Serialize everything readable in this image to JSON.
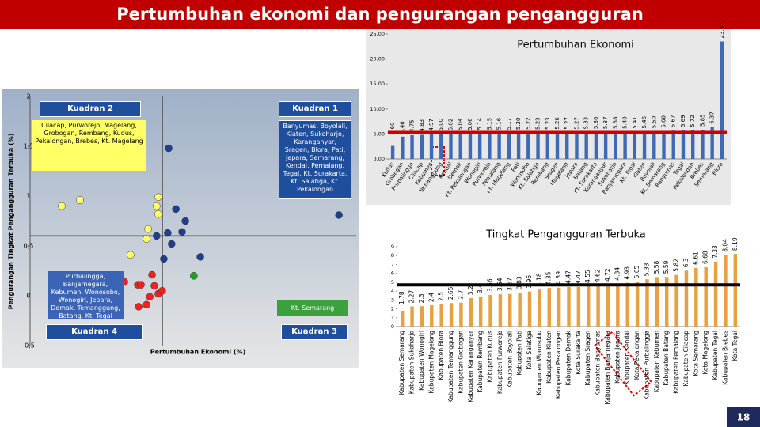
{
  "title": "Pertumbuhan ekonomi dan pengurangan pengangguran",
  "page_number": 18,
  "chart_data": [
    {
      "type": "scatter",
      "x_label": "Pertumbuhan Ekonomi (%)",
      "y_label": "Pengurangan Tingkat Pengangguran Terbuka (%)",
      "xlim": [
        0,
        10
      ],
      "ylim": [
        -0.5,
        2
      ],
      "yticks": [
        {
          "value": 2,
          "label": "2"
        },
        {
          "value": 1.5,
          "label": "1,5"
        },
        {
          "value": 1,
          "label": "1"
        },
        {
          "value": 0.5,
          "label": "0,5"
        },
        {
          "value": 0,
          "label": "0"
        },
        {
          "value": -0.5,
          "label": "-0,5"
        }
      ],
      "x_divider": 4.05,
      "y_divider": 0.6,
      "quadrants": [
        {
          "title": "Kuadran 1",
          "members": "Banyumas, Boyolali, Klaten, Sukoharjo, Karanganyar, Sragen, Blora, Pati, Jepara, Semarang, Kendal, Pemalang, Tegal, Kt. Surakarta, Kt. Salatiga, Kt. Pekalongan"
        },
        {
          "title": "Kuadran 2",
          "members": "Cilacap, Purworejo, Magelang, Grobogan, Rembang, Kudus, Pekalongan, Brebes, Kt. Magelang"
        },
        {
          "title": "Kuadran 3",
          "members": "Kt. Semarang"
        },
        {
          "title": "Kuadran 4",
          "members": "Purbalingga, Banjarnegara, Kebumen, Wonosobo, Wonogiri, Jepara, Demak, Temanggung, Batang, Kt. Tegal"
        }
      ],
      "series": [
        {
          "color": "#ffff66",
          "x": [
            0.97,
            1.53,
            3.93,
            3.88,
            3.93,
            3.62,
            3.57,
            3.08
          ],
          "values": [
            0.9,
            0.96,
            0.99,
            0.9,
            0.82,
            0.67,
            0.57,
            0.41
          ]
        },
        {
          "color": "#1f3f8c",
          "x": [
            4.25,
            4.47,
            4.76,
            3.88,
            4.22,
            4.66,
            4.34,
            4.1,
            5.22,
            9.47
          ],
          "values": [
            1.48,
            0.87,
            0.75,
            0.6,
            0.63,
            0.64,
            0.52,
            0.37,
            0.39,
            0.81
          ]
        },
        {
          "color": "#ee2222",
          "x": [
            2.89,
            3.3,
            3.4,
            3.74,
            3.81,
            3.67,
            3.93,
            3.57,
            4.05,
            3.33
          ],
          "values": [
            0.14,
            0.11,
            0.11,
            0.21,
            0.1,
            -0.01,
            0.02,
            -0.09,
            0.05,
            -0.11
          ]
        },
        {
          "color": "#22a022",
          "x": [
            5.02
          ],
          "values": [
            0.2
          ]
        }
      ]
    },
    {
      "type": "bar",
      "title": "Pertumbuhan Ekonomi",
      "color": "#3e6ab5",
      "reference_line": 5.3,
      "reference_color": "#d00000",
      "ylim": [
        0,
        25
      ],
      "yticks": [
        {
          "value": 0,
          "label": "0.00"
        },
        {
          "value": 5,
          "label": "5.00"
        },
        {
          "value": 10,
          "label": "10.00"
        },
        {
          "value": 15,
          "label": "15.00"
        },
        {
          "value": 20,
          "label": "20.00"
        },
        {
          "value": 25,
          "label": "25.00"
        }
      ],
      "categories": [
        "Kudus",
        "Grobogan",
        "Purbalingga",
        "Cilacap",
        "Kebumen",
        "Temanggung",
        "Kendal",
        "Demak",
        "Kt. Pekalongan",
        "Wonogiri",
        "Purworejo",
        "Pemalang",
        "Kt. Magelang",
        "Pati",
        "Wonosobo",
        "Kt. Salatiga",
        "Rembang",
        "Sragen",
        "Magelang",
        "Jepara",
        "Batang",
        "Kt. Surakarta",
        "Karanganyar",
        "Sukoharjo",
        "Banjarnegara",
        "Kt. Tegal",
        "Klaten",
        "Boyolali",
        "Kt. Semarang",
        "Banyumas",
        "Tegal",
        "Pekalongan",
        "Brebes",
        "Semarang",
        "Blora"
      ],
      "values": [
        2.6,
        4.46,
        4.75,
        4.83,
        4.97,
        5,
        5.02,
        5.04,
        5.06,
        5.14,
        5.15,
        5.16,
        5.17,
        5.2,
        5.22,
        5.23,
        5.23,
        5.26,
        5.27,
        5.27,
        5.33,
        5.36,
        5.37,
        5.38,
        5.4,
        5.41,
        5.46,
        5.5,
        5.6,
        5.67,
        5.69,
        5.72,
        5.85,
        6.37,
        23.5
      ],
      "value_labels": [
        "2.60",
        "4.46",
        "4.75",
        "4.83",
        "4.97",
        "5.00",
        "5.02",
        "5.04",
        "5.06",
        "5.14",
        "5.15",
        "5.16",
        "5.17",
        "5.20",
        "5.22",
        "5.23",
        "5.23",
        "5.26",
        "5.27",
        "5.27",
        "5.33",
        "5.36",
        "5.37",
        "5.38",
        "5.40",
        "5.41",
        "5.46",
        "5.50",
        "5.60",
        "5.67",
        "5.69",
        "5.72",
        "5.85",
        "6.37",
        "23.5"
      ]
    },
    {
      "type": "bar",
      "title": "Tingkat Pengangguran Terbuka",
      "color": "#e8a040",
      "reference_line": 4.7,
      "reference_color": "#000000",
      "ylim": [
        0,
        9
      ],
      "yticks": [
        0,
        1,
        2,
        3,
        4,
        5,
        6,
        7,
        8,
        9
      ],
      "categories": [
        "Kabupaten Semarang",
        "Kabupaten Sukoharjo",
        "Kabupaten Wonogiri",
        "Kabupaten Magelang",
        "Kabupaten Blora",
        "Kabupaten Temanggung",
        "Kabupaten Grobogan",
        "Kabupaten Karanganyar",
        "Kabupaten Rembang",
        "Kabupaten Kudus",
        "Kabupaten Purworejo",
        "Kabupaten Boyolali",
        "Kabupaten Pati",
        "Kota Salatiga",
        "Kabupaten Wonosobo",
        "Kabupaten Klaten",
        "Kabupaten Pekalongan",
        "Kabupaten Demak",
        "Kota Surakarta",
        "Kabupaten Sragen",
        "Kabupaten Banyumas",
        "Kabupaten Banjarnegara",
        "Kabupaten Jepara",
        "Kabupaten Kendal",
        "Kota Pekalongan",
        "Kabupaten Purbalingga",
        "Kabupaten Kebumen",
        "Kabupaten Batang",
        "Kabupaten Pemalang",
        "Kabupaten Cilacap",
        "Kota Semarang",
        "Kota Magelang",
        "Kabupaten Tegal",
        "Kabupaten Brebes",
        "Kota Tegal"
      ],
      "values": [
        1.78,
        2.27,
        2.3,
        2.4,
        2.5,
        2.65,
        2.7,
        3.2,
        3.4,
        3.56,
        3.64,
        3.67,
        3.83,
        3.96,
        4.18,
        4.35,
        4.39,
        4.47,
        4.47,
        4.55,
        4.62,
        4.72,
        4.84,
        4.93,
        5.05,
        5.33,
        5.58,
        5.59,
        5.82,
        6.3,
        6.61,
        6.68,
        7.33,
        8.04,
        8.19
      ]
    }
  ]
}
